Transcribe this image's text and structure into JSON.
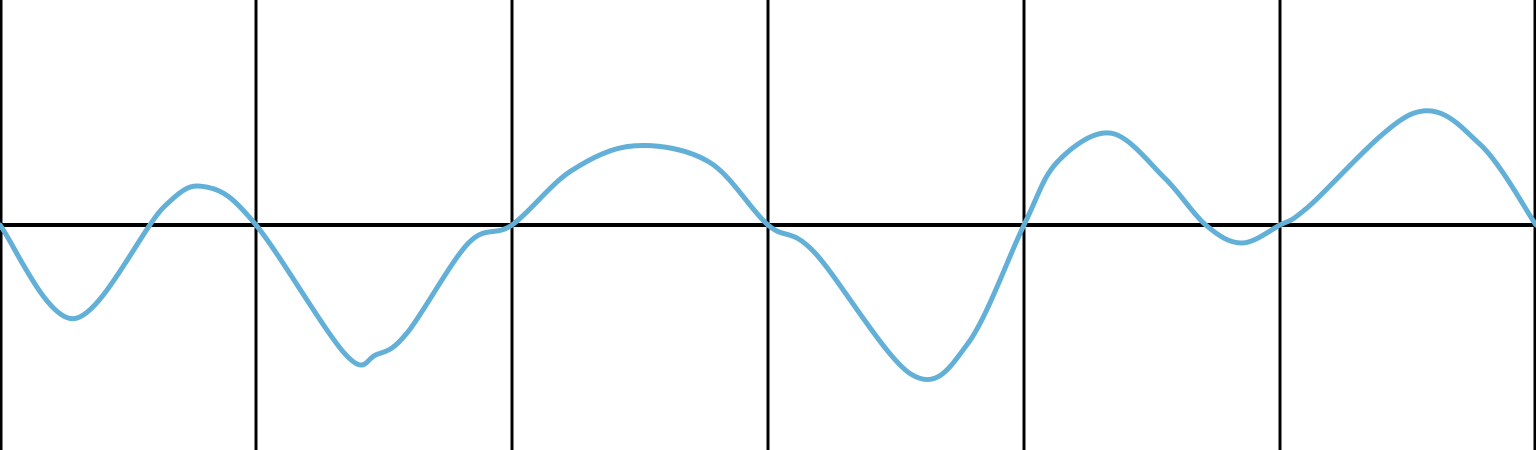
{
  "chart_data": {
    "type": "line",
    "title": "",
    "xlabel": "",
    "ylabel": "",
    "xlim": [
      0,
      6
    ],
    "ylim": [
      -1.25,
      1.25
    ],
    "x_gridlines": [
      0,
      1,
      2,
      3,
      4,
      5,
      6
    ],
    "y_baseline": 0,
    "grid": true,
    "legend": "none",
    "colors": {
      "background": "#ffffff",
      "axis": "#000000",
      "grid": "#000000",
      "line": "#62b0d7"
    },
    "series": [
      {
        "x": [
          0,
          0.29,
          0.64,
          0.81,
          1,
          1.35,
          1.47,
          1.59,
          1.83,
          2,
          2.23,
          2.48,
          2.77,
          3,
          3.18,
          3.56,
          3.78,
          4,
          4.13,
          4.34,
          4.55,
          4.71,
          4.85,
          5,
          5.11,
          5.52,
          5.78,
          6
        ],
        "y": [
          0,
          -0.52,
          0.1,
          0.21,
          0,
          -0.72,
          -0.72,
          -0.6,
          -0.1,
          0,
          0.3,
          0.44,
          0.35,
          0,
          -0.15,
          -0.83,
          -0.66,
          0,
          0.35,
          0.51,
          0.26,
          0,
          -0.1,
          0,
          0.1,
          0.62,
          0.45,
          0
        ]
      }
    ]
  }
}
